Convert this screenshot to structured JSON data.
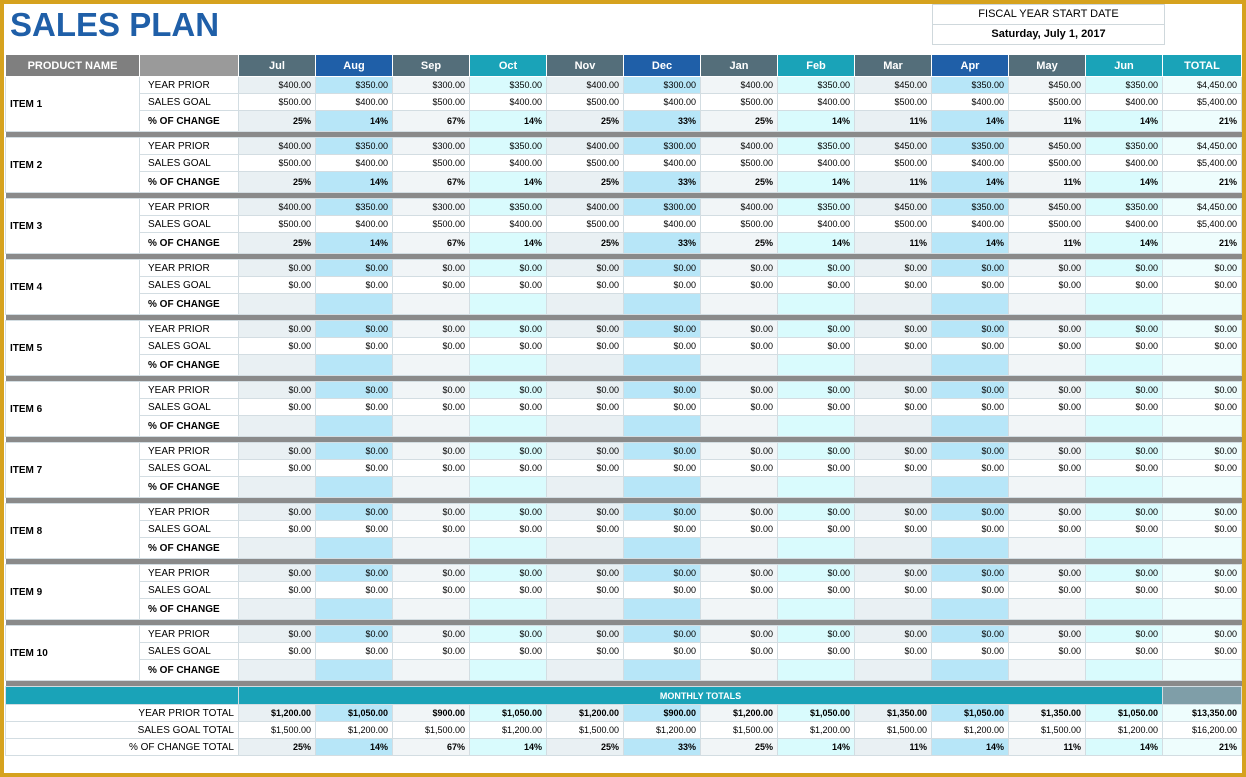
{
  "header": {
    "title": "SALES PLAN",
    "fiscal_label": "FISCAL YEAR START DATE",
    "fiscal_date": "Saturday, July 1, 2017"
  },
  "table": {
    "columns": [
      "PRODUCT NAME",
      "Jul",
      "Aug",
      "Sep",
      "Oct",
      "Nov",
      "Dec",
      "Jan",
      "Feb",
      "Mar",
      "Apr",
      "May",
      "Jun",
      "TOTAL"
    ],
    "row_labels": [
      "YEAR PRIOR",
      "SALES GOAL",
      "% OF CHANGE"
    ],
    "items": [
      {
        "name": "ITEM 1",
        "rows": [
          [
            "$400.00",
            "$350.00",
            "$300.00",
            "$350.00",
            "$400.00",
            "$300.00",
            "$400.00",
            "$350.00",
            "$450.00",
            "$350.00",
            "$450.00",
            "$350.00",
            "$4,450.00"
          ],
          [
            "$500.00",
            "$400.00",
            "$500.00",
            "$400.00",
            "$500.00",
            "$400.00",
            "$500.00",
            "$400.00",
            "$500.00",
            "$400.00",
            "$500.00",
            "$400.00",
            "$5,400.00"
          ],
          [
            "25%",
            "14%",
            "67%",
            "14%",
            "25%",
            "33%",
            "25%",
            "14%",
            "11%",
            "14%",
            "11%",
            "14%",
            "21%"
          ]
        ]
      },
      {
        "name": "ITEM 2",
        "rows": [
          [
            "$400.00",
            "$350.00",
            "$300.00",
            "$350.00",
            "$400.00",
            "$300.00",
            "$400.00",
            "$350.00",
            "$450.00",
            "$350.00",
            "$450.00",
            "$350.00",
            "$4,450.00"
          ],
          [
            "$500.00",
            "$400.00",
            "$500.00",
            "$400.00",
            "$500.00",
            "$400.00",
            "$500.00",
            "$400.00",
            "$500.00",
            "$400.00",
            "$500.00",
            "$400.00",
            "$5,400.00"
          ],
          [
            "25%",
            "14%",
            "67%",
            "14%",
            "25%",
            "33%",
            "25%",
            "14%",
            "11%",
            "14%",
            "11%",
            "14%",
            "21%"
          ]
        ]
      },
      {
        "name": "ITEM 3",
        "rows": [
          [
            "$400.00",
            "$350.00",
            "$300.00",
            "$350.00",
            "$400.00",
            "$300.00",
            "$400.00",
            "$350.00",
            "$450.00",
            "$350.00",
            "$450.00",
            "$350.00",
            "$4,450.00"
          ],
          [
            "$500.00",
            "$400.00",
            "$500.00",
            "$400.00",
            "$500.00",
            "$400.00",
            "$500.00",
            "$400.00",
            "$500.00",
            "$400.00",
            "$500.00",
            "$400.00",
            "$5,400.00"
          ],
          [
            "25%",
            "14%",
            "67%",
            "14%",
            "25%",
            "33%",
            "25%",
            "14%",
            "11%",
            "14%",
            "11%",
            "14%",
            "21%"
          ]
        ]
      },
      {
        "name": "ITEM 4",
        "rows": [
          [
            "$0.00",
            "$0.00",
            "$0.00",
            "$0.00",
            "$0.00",
            "$0.00",
            "$0.00",
            "$0.00",
            "$0.00",
            "$0.00",
            "$0.00",
            "$0.00",
            "$0.00"
          ],
          [
            "$0.00",
            "$0.00",
            "$0.00",
            "$0.00",
            "$0.00",
            "$0.00",
            "$0.00",
            "$0.00",
            "$0.00",
            "$0.00",
            "$0.00",
            "$0.00",
            "$0.00"
          ]
        ]
      },
      {
        "name": "ITEM 5",
        "rows": [
          [
            "$0.00",
            "$0.00",
            "$0.00",
            "$0.00",
            "$0.00",
            "$0.00",
            "$0.00",
            "$0.00",
            "$0.00",
            "$0.00",
            "$0.00",
            "$0.00",
            "$0.00"
          ],
          [
            "$0.00",
            "$0.00",
            "$0.00",
            "$0.00",
            "$0.00",
            "$0.00",
            "$0.00",
            "$0.00",
            "$0.00",
            "$0.00",
            "$0.00",
            "$0.00",
            "$0.00"
          ]
        ]
      },
      {
        "name": "ITEM 6",
        "rows": [
          [
            "$0.00",
            "$0.00",
            "$0.00",
            "$0.00",
            "$0.00",
            "$0.00",
            "$0.00",
            "$0.00",
            "$0.00",
            "$0.00",
            "$0.00",
            "$0.00",
            "$0.00"
          ],
          [
            "$0.00",
            "$0.00",
            "$0.00",
            "$0.00",
            "$0.00",
            "$0.00",
            "$0.00",
            "$0.00",
            "$0.00",
            "$0.00",
            "$0.00",
            "$0.00",
            "$0.00"
          ]
        ]
      },
      {
        "name": "ITEM 7",
        "rows": [
          [
            "$0.00",
            "$0.00",
            "$0.00",
            "$0.00",
            "$0.00",
            "$0.00",
            "$0.00",
            "$0.00",
            "$0.00",
            "$0.00",
            "$0.00",
            "$0.00",
            "$0.00"
          ],
          [
            "$0.00",
            "$0.00",
            "$0.00",
            "$0.00",
            "$0.00",
            "$0.00",
            "$0.00",
            "$0.00",
            "$0.00",
            "$0.00",
            "$0.00",
            "$0.00",
            "$0.00"
          ]
        ]
      },
      {
        "name": "ITEM 8",
        "rows": [
          [
            "$0.00",
            "$0.00",
            "$0.00",
            "$0.00",
            "$0.00",
            "$0.00",
            "$0.00",
            "$0.00",
            "$0.00",
            "$0.00",
            "$0.00",
            "$0.00",
            "$0.00"
          ],
          [
            "$0.00",
            "$0.00",
            "$0.00",
            "$0.00",
            "$0.00",
            "$0.00",
            "$0.00",
            "$0.00",
            "$0.00",
            "$0.00",
            "$0.00",
            "$0.00",
            "$0.00"
          ]
        ]
      },
      {
        "name": "ITEM 9",
        "rows": [
          [
            "$0.00",
            "$0.00",
            "$0.00",
            "$0.00",
            "$0.00",
            "$0.00",
            "$0.00",
            "$0.00",
            "$0.00",
            "$0.00",
            "$0.00",
            "$0.00",
            "$0.00"
          ],
          [
            "$0.00",
            "$0.00",
            "$0.00",
            "$0.00",
            "$0.00",
            "$0.00",
            "$0.00",
            "$0.00",
            "$0.00",
            "$0.00",
            "$0.00",
            "$0.00",
            "$0.00"
          ]
        ]
      },
      {
        "name": "ITEM 10",
        "rows": [
          [
            "$0.00",
            "$0.00",
            "$0.00",
            "$0.00",
            "$0.00",
            "$0.00",
            "$0.00",
            "$0.00",
            "$0.00",
            "$0.00",
            "$0.00",
            "$0.00",
            "$0.00"
          ],
          [
            "$0.00",
            "$0.00",
            "$0.00",
            "$0.00",
            "$0.00",
            "$0.00",
            "$0.00",
            "$0.00",
            "$0.00",
            "$0.00",
            "$0.00",
            "$0.00",
            "$0.00"
          ]
        ]
      }
    ],
    "totals": {
      "banner": "MONTHLY TOTALS",
      "rows": [
        {
          "label": "YEAR PRIOR TOTAL",
          "cells": [
            "$1,200.00",
            "$1,050.00",
            "$900.00",
            "$1,050.00",
            "$1,200.00",
            "$900.00",
            "$1,200.00",
            "$1,050.00",
            "$1,350.00",
            "$1,050.00",
            "$1,350.00",
            "$1,050.00",
            "$13,350.00"
          ]
        },
        {
          "label": "SALES GOAL TOTAL",
          "cells": [
            "$1,500.00",
            "$1,200.00",
            "$1,500.00",
            "$1,200.00",
            "$1,500.00",
            "$1,200.00",
            "$1,500.00",
            "$1,200.00",
            "$1,500.00",
            "$1,200.00",
            "$1,500.00",
            "$1,200.00",
            "$16,200.00"
          ]
        },
        {
          "label": "% OF CHANGE TOTAL",
          "cells": [
            "25%",
            "14%",
            "67%",
            "14%",
            "25%",
            "33%",
            "25%",
            "14%",
            "11%",
            "14%",
            "11%",
            "14%",
            "21%"
          ]
        }
      ]
    }
  }
}
